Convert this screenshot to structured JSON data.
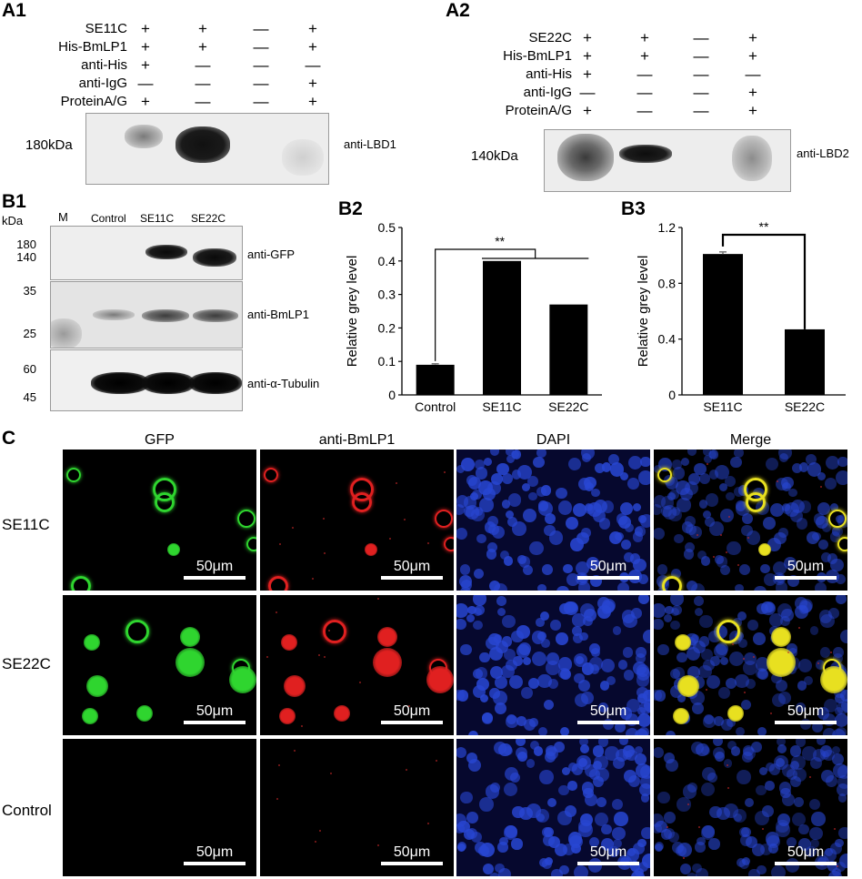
{
  "panel_a1": {
    "label": "A1",
    "row_labels": [
      "SE11C",
      "His-BmLP1",
      "anti-His",
      "anti-IgG",
      "ProteinA/G"
    ],
    "signs": [
      [
        "+",
        "+",
        "—",
        "+"
      ],
      [
        "+",
        "+",
        "—",
        "+"
      ],
      [
        "+",
        "—",
        "—",
        "—"
      ],
      [
        "—",
        "—",
        "—",
        "+"
      ],
      [
        "+",
        "—",
        "—",
        "+"
      ]
    ],
    "mw_label": "180kDa",
    "blot_label": "anti-LBD1"
  },
  "panel_a2": {
    "label": "A2",
    "row_labels": [
      "SE22C",
      "His-BmLP1",
      "anti-His",
      "anti-IgG",
      "ProteinA/G"
    ],
    "signs": [
      [
        "+",
        "+",
        "—",
        "+"
      ],
      [
        "+",
        "+",
        "—",
        "+"
      ],
      [
        "+",
        "—",
        "—",
        "—"
      ],
      [
        "—",
        "—",
        "—",
        "+"
      ],
      [
        "+",
        "—",
        "—",
        "+"
      ]
    ],
    "mw_label": "140kDa",
    "blot_label": "anti-LBD2"
  },
  "panel_b1": {
    "label": "B1",
    "kda": "kDa",
    "lanes": [
      "M",
      "Control",
      "SE11C",
      "SE22C"
    ],
    "markers_gfp": [
      "180",
      "140"
    ],
    "markers_bmlp1": [
      "35",
      "25"
    ],
    "markers_tubulin": [
      "60",
      "45"
    ],
    "blots": [
      "anti-GFP",
      "anti-BmLP1",
      "anti-α-Tubulin"
    ]
  },
  "panel_b2": {
    "label": "B2"
  },
  "panel_b3": {
    "label": "B3"
  },
  "chart_data": [
    {
      "type": "bar",
      "categories": [
        "Control",
        "SE11C",
        "SE22C"
      ],
      "values": [
        0.09,
        0.4,
        0.27
      ],
      "errors": [
        0.003,
        0.0,
        0.0
      ],
      "ylabel": "Relative grey level",
      "ylim": [
        0,
        0.5
      ],
      "yticks": [
        "0",
        "0.1",
        "0.2",
        "0.3",
        "0.4",
        "0.5"
      ],
      "significance": "**"
    },
    {
      "type": "bar",
      "categories": [
        "SE11C",
        "SE22C"
      ],
      "values": [
        1.01,
        0.47
      ],
      "errors": [
        0.015,
        0.0
      ],
      "ylabel": "Relative grey level",
      "ylim": [
        0,
        1.2
      ],
      "yticks": [
        "0",
        "0.4",
        "0.8",
        "1.2"
      ],
      "significance": "**"
    }
  ],
  "panel_c": {
    "label": "C",
    "columns": [
      "GFP",
      "anti-BmLP1",
      "DAPI",
      "Merge"
    ],
    "rows": [
      "SE11C",
      "SE22C",
      "Control"
    ],
    "scale_bar": "50μm"
  },
  "colors": {
    "gfp": "#2fd52f",
    "bmlp1": "#e02020",
    "dapi": "#1e3cc8",
    "merge": "#e8e020"
  }
}
